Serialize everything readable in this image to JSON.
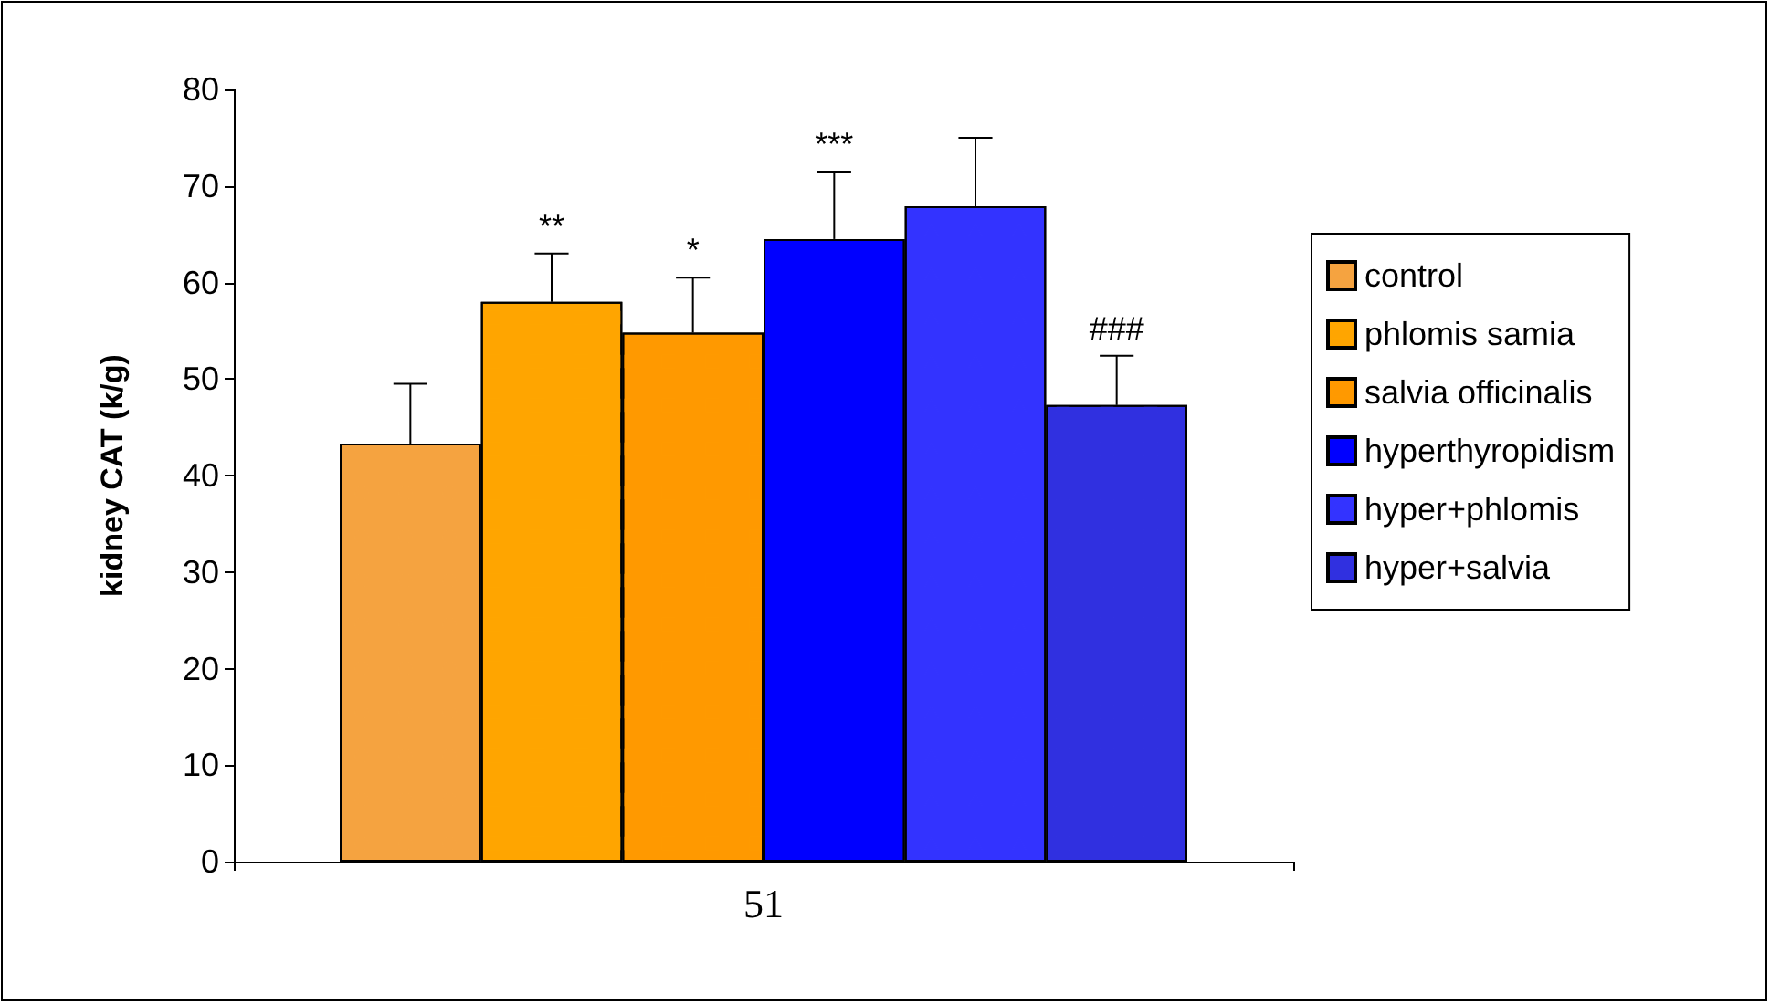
{
  "chart_data": {
    "type": "bar",
    "ylabel": "kidney CAT (k/g)",
    "categories": [
      "51"
    ],
    "series": [
      {
        "name": "control",
        "color": "#f5a340",
        "values": [
          43.3
        ],
        "errors": [
          [
            43.3,
            49.5
          ]
        ],
        "value_labels": [
          null
        ]
      },
      {
        "name": "phlomis samia",
        "color": "#ffa500",
        "values": [
          58.0
        ],
        "errors": [
          [
            58.0,
            63.0
          ]
        ],
        "value_labels": [
          "**"
        ]
      },
      {
        "name": "salvia officinalis",
        "color": "#ff9900",
        "values": [
          54.8
        ],
        "errors": [
          [
            54.8,
            60.5
          ]
        ],
        "value_labels": [
          "*"
        ]
      },
      {
        "name": "hyperthyropidism",
        "color": "#0000ff",
        "values": [
          64.5
        ],
        "errors": [
          [
            64.5,
            71.5
          ]
        ],
        "value_labels": [
          "***"
        ]
      },
      {
        "name": "hyper+phlomis",
        "color": "#3333ff",
        "values": [
          67.9
        ],
        "errors": [
          [
            67.9,
            75.0
          ]
        ],
        "value_labels": [
          null
        ]
      },
      {
        "name": "hyper+salvia",
        "color": "#3030e0",
        "values": [
          47.3
        ],
        "errors": [
          [
            47.3,
            52.4
          ]
        ],
        "value_labels": [
          "###"
        ]
      }
    ],
    "ylim": [
      0,
      80
    ],
    "yticks": [
      0,
      10,
      20,
      30,
      40,
      50,
      60,
      70,
      80
    ],
    "grid": false,
    "legend": "right"
  }
}
